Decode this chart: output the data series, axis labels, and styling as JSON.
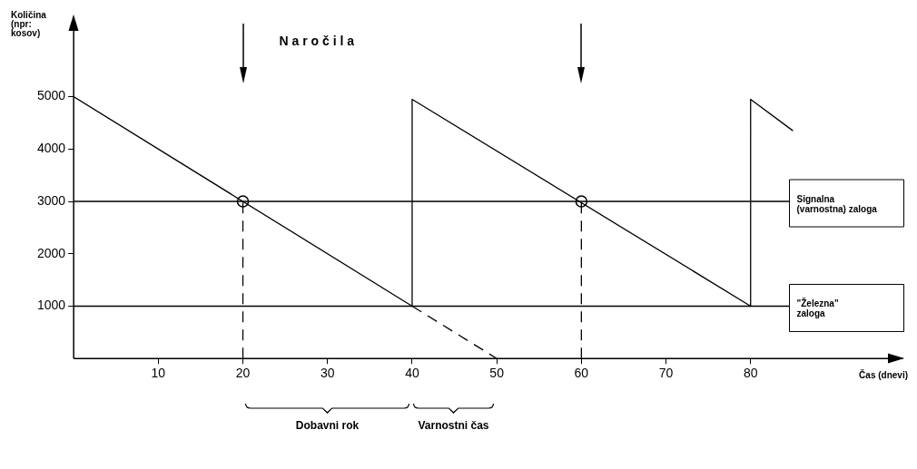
{
  "chart_data": {
    "type": "line",
    "xlabel": "Čas (dnevi)",
    "ylabel": "Količina (npr: kosov)",
    "xlim": [
      0,
      98
    ],
    "ylim": [
      0,
      6500
    ],
    "xticks": [
      10,
      20,
      30,
      40,
      50,
      60,
      70,
      80
    ],
    "yticks": [
      1000,
      2000,
      3000,
      4000,
      5000
    ],
    "grid": false,
    "legend": false,
    "marker": "none",
    "series": [
      {
        "type": "line",
        "x": [
          0,
          40,
          40,
          80,
          80,
          85
        ],
        "values": [
          5000,
          1000,
          4950,
          1000,
          4950,
          4350
        ],
        "color": "#000000",
        "line_style": "solid"
      },
      {
        "type": "line",
        "x": [
          40,
          50
        ],
        "values": [
          1000,
          0
        ],
        "color": "#000000",
        "line_style": "dashed"
      },
      {
        "type": "line",
        "x": [
          20,
          20
        ],
        "values": [
          0,
          3000
        ],
        "color": "#000000",
        "line_style": "dashed"
      },
      {
        "type": "line",
        "x": [
          60,
          60
        ],
        "values": [
          0,
          3000
        ],
        "color": "#000000",
        "line_style": "dashed"
      },
      {
        "type": "scatter",
        "x": [
          20,
          60
        ],
        "values": [
          3000,
          3000
        ],
        "color": "#000000",
        "marker": "circle"
      }
    ],
    "ref_lines": [
      {
        "axis": "y",
        "value": 3000,
        "label": "Signalna (varnostna) zaloga",
        "color": "#000000"
      },
      {
        "axis": "y",
        "value": 1000,
        "label": "\"Železna\" zaloga",
        "color": "#000000"
      }
    ],
    "annotations": [
      "N a r o č i l a",
      "Dobavni rok",
      "Varnostni čas"
    ]
  }
}
